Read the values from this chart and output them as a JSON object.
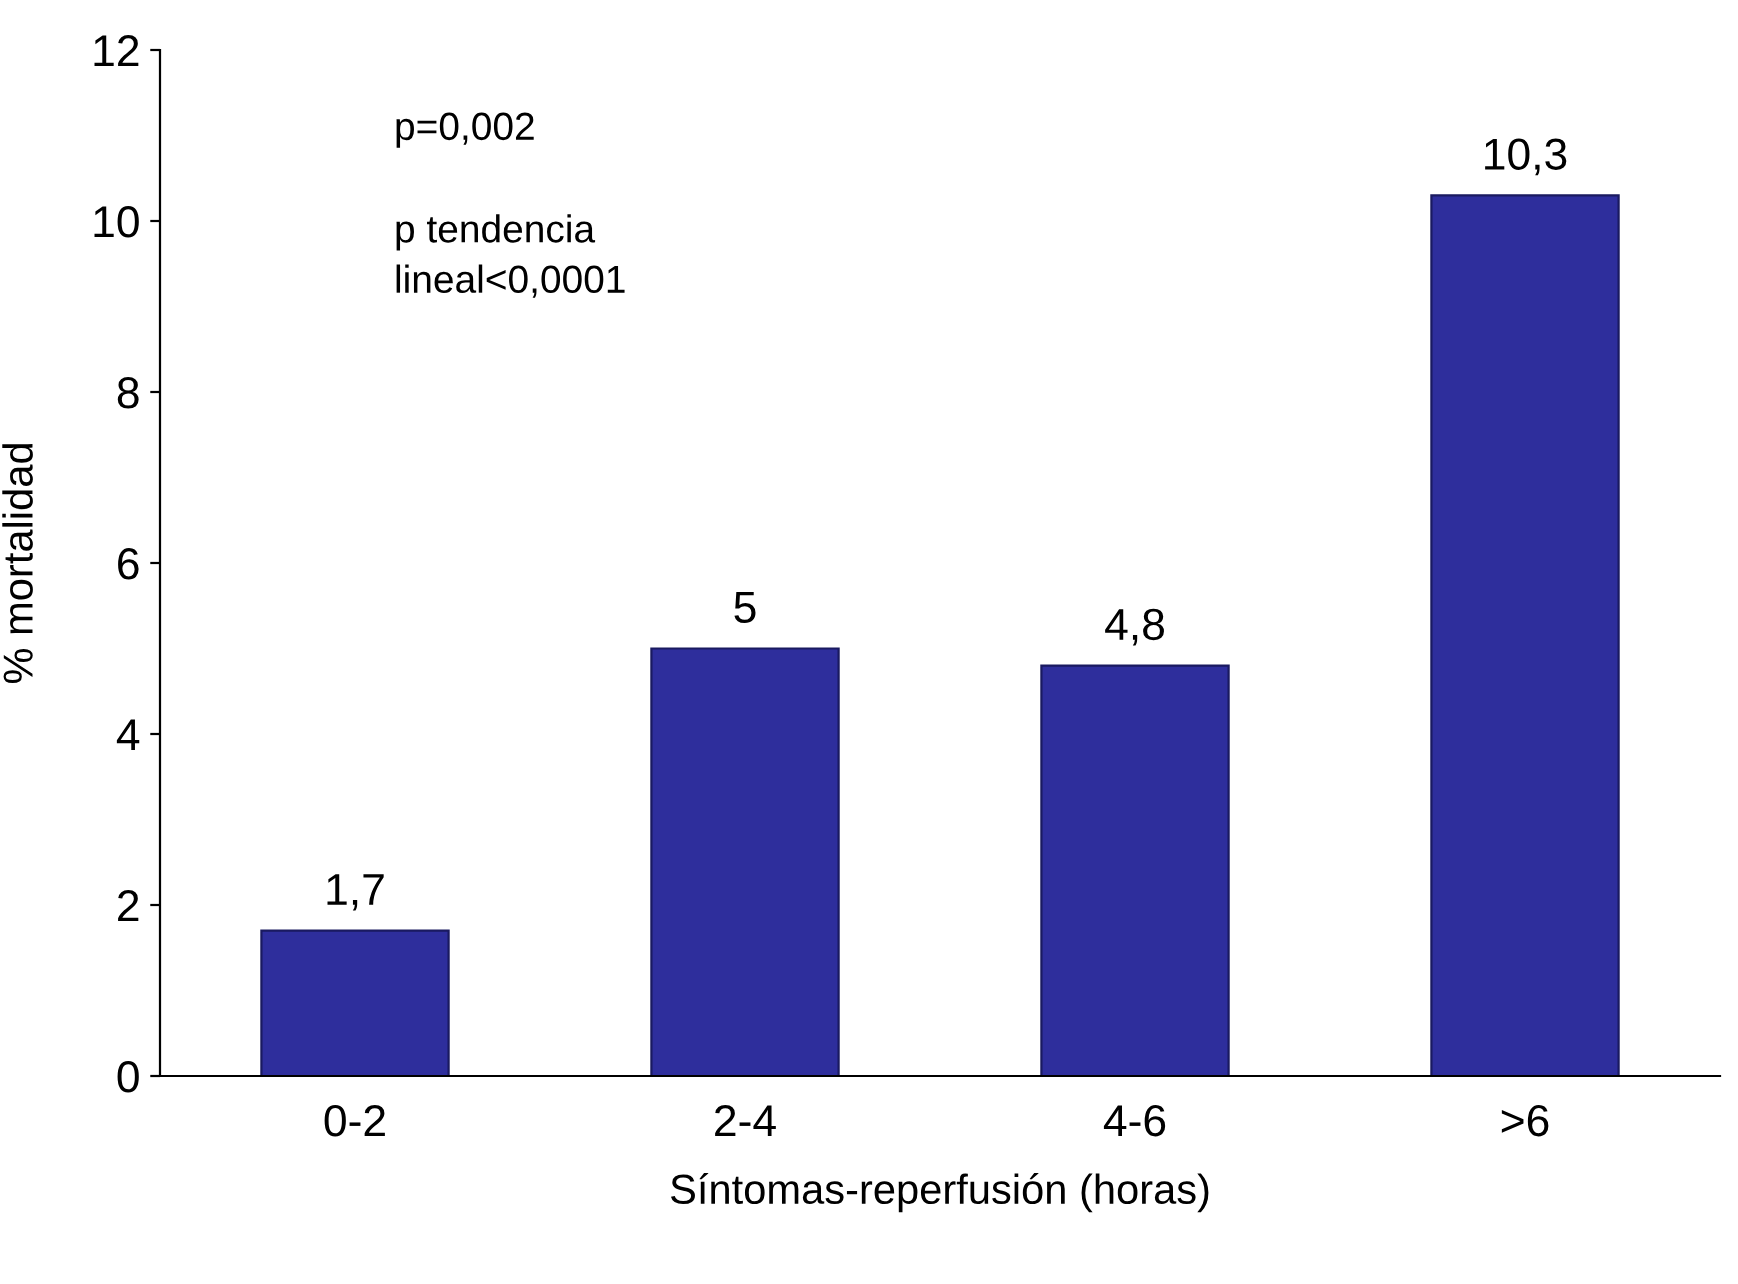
{
  "chart_data": {
    "type": "bar",
    "xlabel": "Síntomas-reperfusión (horas)",
    "ylabel": "% mortalidad",
    "categories": [
      "0-2",
      "2-4",
      "4-6",
      ">6"
    ],
    "values": [
      1.7,
      5,
      4.8,
      10.3
    ],
    "value_labels": [
      "1,7",
      "5",
      "4,8",
      "10,3"
    ],
    "color": "#2e2e9c",
    "ylim": [
      0,
      12
    ],
    "yticks": [
      0,
      2,
      4,
      6,
      8,
      10,
      12
    ],
    "grid": false,
    "legend": false,
    "annotations": [
      "p=0,002",
      "p tendencia\nlineal<0,0001"
    ]
  }
}
